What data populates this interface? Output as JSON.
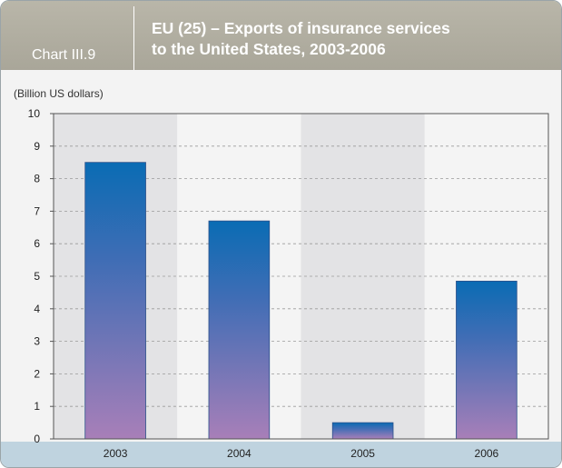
{
  "header": {
    "chart_number": "Chart III.9",
    "title_line1": "EU (25) – Exports of insurance services",
    "title_line2": "to the United States, 2003-2006"
  },
  "unit_label": "(Billion US dollars)",
  "colors": {
    "bar_top": "#0a6cb4",
    "bar_bottom": "#a87fb8",
    "header": "#b0ad a0",
    "bottom_band": "#bfd3df"
  },
  "chart_data": {
    "type": "bar",
    "categories": [
      "2003",
      "2004",
      "2005",
      "2006"
    ],
    "values": [
      8.5,
      6.7,
      0.5,
      4.85
    ],
    "ylim": [
      0,
      10
    ],
    "yticks": [
      "0",
      "1",
      "2",
      "3",
      "4",
      "5",
      "6",
      "7",
      "8",
      "9",
      "10"
    ],
    "ylabel": "(Billion US dollars)",
    "grid": true
  }
}
